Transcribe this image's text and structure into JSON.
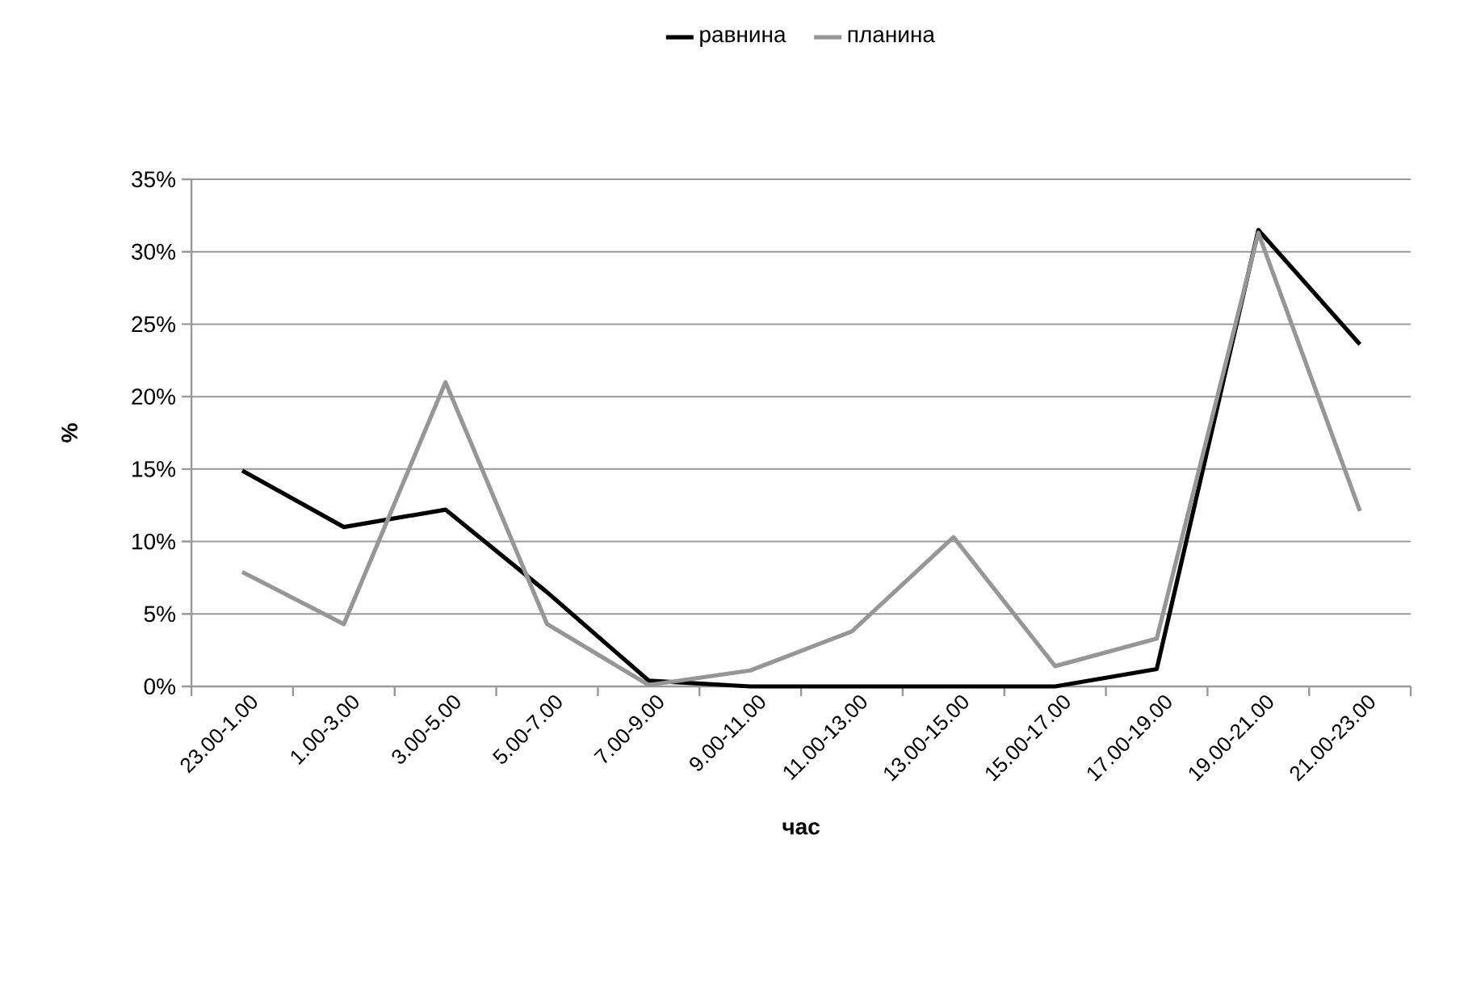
{
  "chart_data": {
    "type": "line",
    "xlabel": "час",
    "ylabel": "%",
    "categories": [
      "23.00-1.00",
      "1.00-3.00",
      "3.00-5.00",
      "5.00-7.00",
      "7.00-9.00",
      "9.00-11.00",
      "11.00-13.00",
      "13.00-15.00",
      "15.00-17.00",
      "17.00-19.00",
      "19.00-21.00",
      "21.00-23.00"
    ],
    "series": [
      {
        "name": "равнина",
        "color": "#000000",
        "values": [
          14.9,
          11.0,
          12.2,
          6.5,
          0.4,
          0,
          0,
          0,
          0,
          1.2,
          31.5,
          23.6
        ]
      },
      {
        "name": "планина",
        "color": "#969696",
        "values": [
          7.9,
          4.3,
          21.0,
          4.3,
          0.1,
          1.1,
          3.8,
          10.3,
          1.4,
          3.3,
          31.3,
          12.1
        ]
      }
    ],
    "ylim": [
      0,
      35
    ],
    "yticks": [
      {
        "value": 0,
        "label": "0%"
      },
      {
        "value": 5,
        "label": "5%"
      },
      {
        "value": 10,
        "label": "10%"
      },
      {
        "value": 15,
        "label": "15%"
      },
      {
        "value": 20,
        "label": "20%"
      },
      {
        "value": 25,
        "label": "25%"
      },
      {
        "value": 30,
        "label": "30%"
      },
      {
        "value": 35,
        "label": "35%"
      }
    ],
    "grid": "y",
    "legend": "top",
    "marker": "none",
    "line_style": "solid"
  }
}
